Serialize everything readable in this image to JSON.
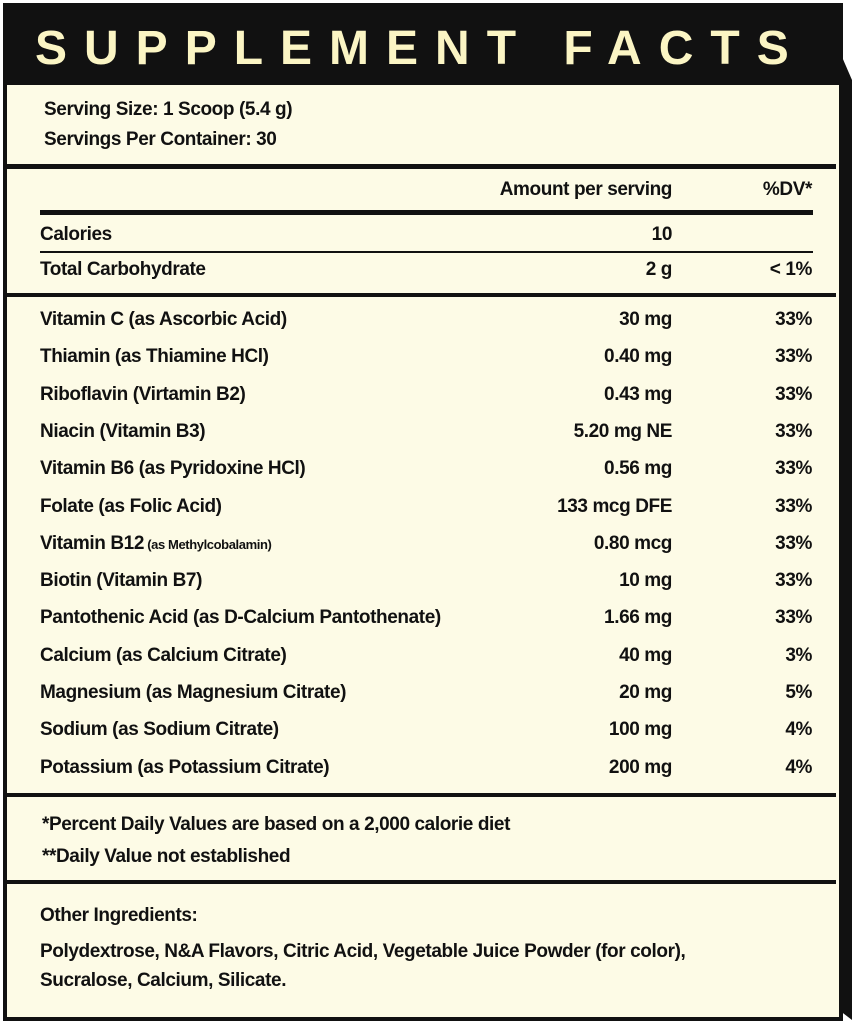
{
  "header": {
    "title": "SUPPLEMENT FACTS"
  },
  "serving": [
    "Serving Size: 1 Scoop (5.4 g)",
    "Servings Per Container: 30"
  ],
  "table": {
    "columns": [
      "Amount per serving",
      "%DV*"
    ],
    "top_rows": [
      {
        "name": "Calories",
        "amount": "10"
      },
      {
        "name": "Total Carbohydrate",
        "amount": "2 g",
        "dv": "< 1%"
      }
    ],
    "rows": [
      {
        "name": "Vitamin C (as Ascorbic Acid)",
        "amount": "30 mg",
        "dv": "33%"
      },
      {
        "name": "Thiamin (as Thiamine HCl)",
        "amount": "0.40 mg",
        "dv": "33%"
      },
      {
        "name": "Riboflavin (Virtamin B2)",
        "amount": "0.43 mg",
        "dv": "33%"
      },
      {
        "name": "Niacin (Vitamin B3)",
        "amount": "5.20 mg NE",
        "dv": "33%"
      },
      {
        "name": "Vitamin B6 (as Pyridoxine HCl)",
        "amount": "0.56 mg",
        "dv": "33%"
      },
      {
        "name": "Folate (as Folic Acid)",
        "amount": "133 mcg DFE",
        "dv": "33%"
      },
      {
        "name": "Vitamin B12",
        "note": "(as Methylcobalamin)",
        "amount": "0.80 mcg",
        "dv": "33%"
      },
      {
        "name": "Biotin (Vitamin B7)",
        "amount": "10 mg",
        "dv": "33%"
      },
      {
        "name": "Pantothenic Acid (as D-Calcium Pantothenate)",
        "amount": "1.66 mg",
        "dv": "33%"
      },
      {
        "name": "Calcium (as Calcium Citrate)",
        "amount": "40 mg",
        "dv": "3%"
      },
      {
        "name": "Magnesium (as Magnesium Citrate)",
        "amount": "20 mg",
        "dv": "5%"
      },
      {
        "name": "Sodium (as Sodium Citrate)",
        "amount": "100 mg",
        "dv": "4%"
      },
      {
        "name": "Potassium (as Potassium Citrate)",
        "amount": "200 mg",
        "dv": "4%"
      }
    ]
  },
  "footnotes": [
    "*Percent Daily Values are based on a 2,000 calorie diet",
    "**Daily Value not established"
  ],
  "other_ingredients": {
    "label": "Other Ingredients:",
    "lines": [
      "Polydextrose, N&A Flavors, Citric Acid, Vegetable Juice Powder (for color),",
      "Sucralose, Calcium, Silicate."
    ]
  }
}
